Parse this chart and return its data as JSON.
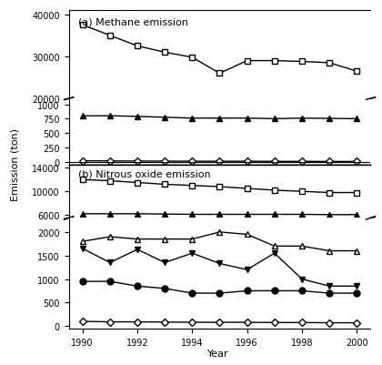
{
  "years": [
    1990,
    1991,
    1992,
    1993,
    1994,
    1995,
    1996,
    1997,
    1998,
    1999,
    2000
  ],
  "methane": {
    "square_open": [
      37500,
      35000,
      32500,
      31000,
      29800,
      26000,
      29000,
      29000,
      28800,
      28500,
      26500
    ],
    "triangle_filled": [
      800,
      800,
      790,
      775,
      760,
      760,
      760,
      750,
      760,
      755,
      750
    ],
    "diamond_open": [
      20,
      18,
      15,
      14,
      13,
      12,
      12,
      10,
      10,
      8,
      8
    ]
  },
  "nitrous": {
    "square_open": [
      12000,
      11800,
      11500,
      11200,
      11000,
      10800,
      10500,
      10200,
      10000,
      9800,
      9800
    ],
    "triangle_filled": [
      6200,
      6200,
      6200,
      6150,
      6100,
      6100,
      6100,
      6100,
      6100,
      6050,
      6050
    ],
    "triangle_open": [
      1800,
      1900,
      1850,
      1850,
      1850,
      2000,
      1950,
      1700,
      1700,
      1600,
      1600
    ],
    "triangle_down_filled": [
      1650,
      1350,
      1630,
      1350,
      1550,
      1330,
      1200,
      1550,
      1000,
      850,
      850
    ],
    "circle_filled": [
      950,
      950,
      850,
      800,
      700,
      700,
      750,
      750,
      750,
      700,
      700
    ],
    "diamond_open": [
      100,
      90,
      90,
      85,
      80,
      80,
      80,
      75,
      75,
      70,
      70
    ]
  },
  "color": "black",
  "linewidth": 1.0,
  "markersize": 5
}
